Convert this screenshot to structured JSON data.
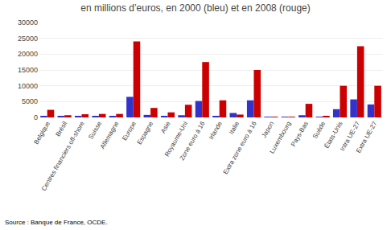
{
  "chart_data": {
    "type": "bar",
    "title": "en millions d’euros, en 2000 (bleu) et en 2008 (rouge)",
    "categories": [
      "Belgique",
      "Brésil",
      "Centres financiers off-shore",
      "Suisse",
      "Allemagne",
      "Europe",
      "Espagne",
      "Asie",
      "Royaume-Uni",
      "Zone euro à 16",
      "Irlande",
      "Italie",
      "Extra zone euro à 16",
      "Japon",
      "Luxembourg",
      "Pays-Bas",
      "Suède",
      "États-Unis",
      "Intra UE-27",
      "Extra UE-27"
    ],
    "series": [
      {
        "color": "#3333cc",
        "values": [
          500,
          300,
          300,
          500,
          500,
          6500,
          800,
          500,
          700,
          5200,
          500,
          1400,
          5400,
          100,
          100,
          700,
          100,
          2600,
          5700,
          4100
        ]
      },
      {
        "color": "#cc0000",
        "values": [
          2400,
          700,
          1000,
          1100,
          1100,
          24000,
          3000,
          1600,
          4000,
          17500,
          5400,
          900,
          15000,
          200,
          200,
          4300,
          300,
          10000,
          22500,
          10000
        ]
      }
    ],
    "ylim": [
      0,
      30000
    ],
    "yticks": [
      0,
      5000,
      10000,
      15000,
      20000,
      25000,
      30000
    ],
    "grid": true,
    "annotations": [
      "Source : Banque de France, OCDE."
    ]
  }
}
